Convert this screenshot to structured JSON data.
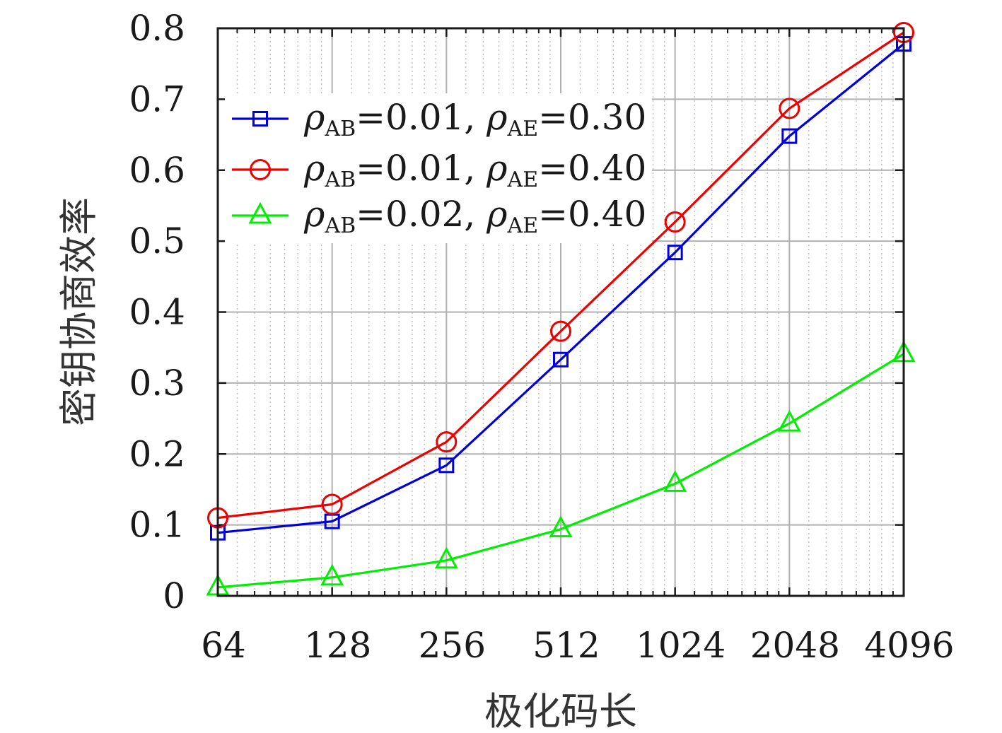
{
  "chart_data": {
    "type": "line",
    "title": "",
    "xlabel": "极化码长",
    "ylabel": "密钥协商效率",
    "x_scale": "log2",
    "x": [
      64,
      128,
      256,
      512,
      1024,
      2048,
      4096
    ],
    "x_tick_labels": [
      "64",
      "128",
      "256",
      "512",
      "1024",
      "2048",
      "4096"
    ],
    "xlim": [
      64,
      4096
    ],
    "ylim": [
      0,
      0.8
    ],
    "y_ticks": [
      0,
      0.1,
      0.2,
      0.3,
      0.4,
      0.5,
      0.6,
      0.7,
      0.8
    ],
    "y_tick_labels": [
      "0",
      "0.1",
      "0.2",
      "0.3",
      "0.4",
      "0.5",
      "0.6",
      "0.7",
      "0.8"
    ],
    "grid": true,
    "legend_position": "top-left",
    "series": [
      {
        "legend": {
          "rho": "ρ",
          "sub1": "AB",
          "val1": "=0.01, ",
          "sub2": "AE",
          "val2": "=0.30"
        },
        "color": "#0000dd",
        "marker": "square",
        "values": [
          0.089,
          0.105,
          0.184,
          0.333,
          0.484,
          0.648,
          0.778
        ]
      },
      {
        "legend": {
          "rho": "ρ",
          "sub1": "AB",
          "val1": "=0.01, ",
          "sub2": "AE",
          "val2": "=0.40"
        },
        "color": "#ee0000",
        "marker": "circle",
        "values": [
          0.11,
          0.129,
          0.217,
          0.373,
          0.527,
          0.687,
          0.794
        ]
      },
      {
        "legend": {
          "rho": "ρ",
          "sub1": "AB",
          "val1": "=0.02, ",
          "sub2": "AE",
          "val2": "=0.40"
        },
        "color": "#00ee00",
        "marker": "triangle",
        "values": [
          0.012,
          0.026,
          0.05,
          0.094,
          0.158,
          0.243,
          0.341
        ]
      }
    ]
  }
}
